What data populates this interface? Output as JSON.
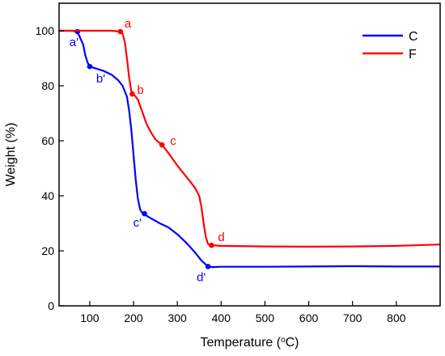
{
  "chart_data": {
    "type": "line",
    "xlabel": "Temperature (",
    "xlabel_sup": "o",
    "xlabel_unit": "C)",
    "ylabel": "Weight (%)",
    "xlim": [
      30,
      900
    ],
    "ylim": [
      0,
      110
    ],
    "x_ticks": [
      100,
      200,
      300,
      400,
      500,
      600,
      700,
      800
    ],
    "y_ticks": [
      0,
      20,
      40,
      60,
      80,
      100
    ],
    "grid": false,
    "legend_position": "top-right",
    "series": [
      {
        "name": "C",
        "color": "#0000ff",
        "x": [
          30,
          60,
          70,
          75,
          85,
          90,
          95,
          100,
          110,
          130,
          150,
          165,
          175,
          185,
          190,
          195,
          200,
          205,
          210,
          215,
          220,
          225,
          240,
          260,
          280,
          300,
          320,
          340,
          355,
          365,
          370,
          380,
          400,
          500,
          600,
          700,
          800,
          900
        ],
        "y": [
          100,
          100,
          99.7,
          98.5,
          95,
          91,
          88.5,
          87,
          86.5,
          85.5,
          84,
          82,
          80,
          76,
          71,
          64,
          55,
          46,
          39,
          35,
          33.8,
          33.2,
          31.8,
          30,
          28.5,
          26,
          23,
          19.5,
          16.5,
          15,
          14.2,
          14.1,
          14.2,
          14.2,
          14.3,
          14.4,
          14.3,
          14.3
        ],
        "markers": [
          {
            "label": "a'",
            "x": 72,
            "y": 99.7
          },
          {
            "label": "b'",
            "x": 100,
            "y": 87
          },
          {
            "label": "c'",
            "x": 225,
            "y": 33.5
          },
          {
            "label": "d'",
            "x": 370,
            "y": 14.3
          }
        ]
      },
      {
        "name": "F",
        "color": "#ff0000",
        "x": [
          30,
          100,
          150,
          170,
          175,
          180,
          185,
          190,
          195,
          200,
          210,
          220,
          230,
          240,
          250,
          265,
          280,
          300,
          320,
          340,
          350,
          355,
          360,
          365,
          370,
          375,
          380,
          400,
          500,
          600,
          700,
          800,
          900
        ],
        "y": [
          100,
          100,
          100,
          99.7,
          99,
          96,
          90,
          83,
          78,
          77,
          75,
          70.5,
          66,
          63,
          60.5,
          58.5,
          55.5,
          51,
          47,
          43,
          40,
          36,
          30,
          25,
          22.5,
          22,
          22,
          21.8,
          21.6,
          21.5,
          21.6,
          21.8,
          22.3
        ],
        "markers": [
          {
            "label": "a",
            "x": 170,
            "y": 99.7
          },
          {
            "label": "b",
            "x": 197,
            "y": 77
          },
          {
            "label": "c",
            "x": 265,
            "y": 58.5
          },
          {
            "label": "d",
            "x": 378,
            "y": 22
          }
        ]
      }
    ]
  }
}
